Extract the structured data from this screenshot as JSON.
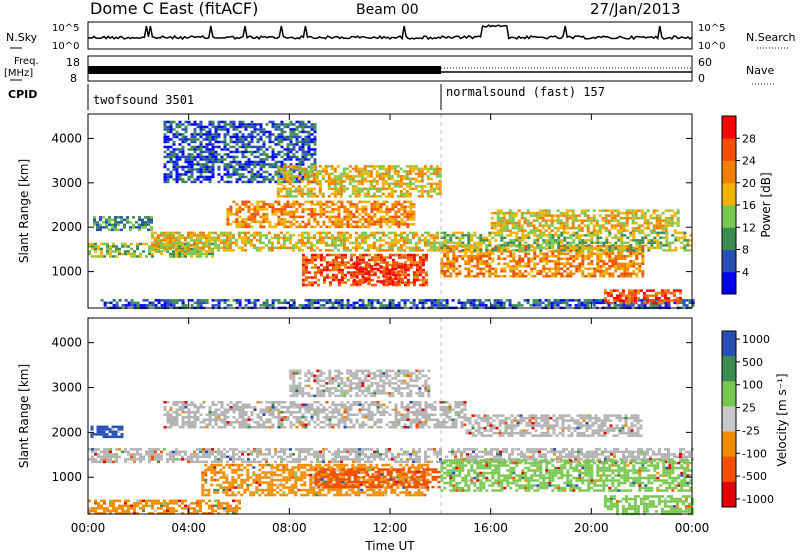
{
  "header": {
    "title": "Dome C East (fitACF)",
    "beam": "Beam 00",
    "date": "27/Jan/2013"
  },
  "status_panels": {
    "nsky_label": "N.Sky",
    "nsky_ticks": [
      "10^5",
      "10^0"
    ],
    "nsearch_label": "N.Search",
    "nsearch_ticks": [
      "10^5",
      "10^0"
    ],
    "freq_label": "Freq.",
    "freq_unit": "[MHz]",
    "freq_ticks": [
      "18",
      "8"
    ],
    "nave_label": "Nave",
    "nave_ticks": [
      "60",
      "0"
    ],
    "cpid_label": "CPID",
    "cpid_segments": [
      {
        "name": "twofsound 3501",
        "start_hour": 0
      },
      {
        "name": "normalsound (fast) 157",
        "start_hour": 14
      }
    ]
  },
  "colors": {
    "power_scale": [
      "#0000ff",
      "#2850b4",
      "#3c8c50",
      "#78c850",
      "#f0b400",
      "#f08000",
      "#f05000",
      "#ff0000"
    ],
    "velocity_scale": [
      "#e00000",
      "#f05000",
      "#f08c00",
      "#c8c8c8",
      "#78c850",
      "#3c8c50",
      "#2850b4"
    ],
    "ground_scatter": "#b4b4b4"
  },
  "chart_data": [
    {
      "type": "heatmap",
      "title": "Power",
      "ylabel": "Slant Range [km]",
      "xlabel": "Time UT",
      "x_ticks": [
        "00:00",
        "04:00",
        "08:00",
        "12:00",
        "16:00",
        "20:00",
        "00:00"
      ],
      "xlim_hours": [
        0,
        24
      ],
      "y_ticks": [
        1000,
        2000,
        3000,
        4000
      ],
      "ylim": [
        180,
        4550
      ],
      "colorbar_label": "Power [dB]",
      "colorbar_ticks": [
        4,
        8,
        12,
        16,
        20,
        24,
        28
      ],
      "colorbar_range": [
        0,
        32
      ],
      "bands": [
        {
          "t0": 0,
          "t1": 5,
          "r0": 1350,
          "r1": 1650,
          "level": 3
        },
        {
          "t0": 0.2,
          "t1": 2.5,
          "r0": 1950,
          "r1": 2250,
          "level": 2
        },
        {
          "t0": 0.5,
          "t1": 24,
          "r0": 200,
          "r1": 380,
          "level": 1
        },
        {
          "t0": 2.5,
          "t1": 14,
          "r0": 1500,
          "r1": 1900,
          "level": 4
        },
        {
          "t0": 5.5,
          "t1": 13,
          "r0": 2000,
          "r1": 2600,
          "level": 5
        },
        {
          "t0": 8.5,
          "t1": 13.5,
          "r0": 700,
          "r1": 1400,
          "level": 6
        },
        {
          "t0": 10.5,
          "t1": 12.5,
          "r0": 700,
          "r1": 1200,
          "level": 7
        },
        {
          "t0": 14,
          "t1": 22,
          "r0": 900,
          "r1": 1600,
          "level": 5
        },
        {
          "t0": 14,
          "t1": 24,
          "r0": 1500,
          "r1": 1900,
          "level": 3
        },
        {
          "t0": 16,
          "t1": 23.5,
          "r0": 1900,
          "r1": 2400,
          "level": 4
        },
        {
          "t0": 20.5,
          "t1": 23.5,
          "r0": 300,
          "r1": 600,
          "level": 6
        },
        {
          "t0": 3.0,
          "t1": 9,
          "r0": 3000,
          "r1": 4400,
          "level": 1
        },
        {
          "t0": 7.5,
          "t1": 14,
          "r0": 2700,
          "r1": 3400,
          "level": 4
        }
      ]
    },
    {
      "type": "heatmap",
      "title": "Velocity",
      "ylabel": "Slant Range [km]",
      "xlabel": "Time UT",
      "x_ticks": [
        "00:00",
        "04:00",
        "08:00",
        "12:00",
        "16:00",
        "20:00",
        "00:00"
      ],
      "xlim_hours": [
        0,
        24
      ],
      "y_ticks": [
        1000,
        2000,
        3000,
        4000
      ],
      "ylim": [
        180,
        4550
      ],
      "colorbar_label": "Velocity [m s⁻¹]",
      "colorbar_ticks": [
        "1000",
        "500",
        "100",
        "25",
        "-25",
        "-100",
        "-500",
        "-1000"
      ],
      "bands": [
        {
          "t0": 0,
          "t1": 24,
          "r0": 1350,
          "r1": 1650,
          "color": "ground"
        },
        {
          "t0": 3,
          "t1": 15,
          "r0": 2100,
          "r1": 2700,
          "color": "ground"
        },
        {
          "t0": 4.5,
          "t1": 13.5,
          "r0": 600,
          "r1": 1300,
          "color": "orange"
        },
        {
          "t0": 9,
          "t1": 14,
          "r0": 800,
          "r1": 1200,
          "color": "red-orange"
        },
        {
          "t0": 14,
          "t1": 24,
          "r0": 700,
          "r1": 1400,
          "color": "green"
        },
        {
          "t0": 0.1,
          "t1": 1.3,
          "r0": 1900,
          "r1": 2150,
          "color": "blue"
        },
        {
          "t0": 8,
          "t1": 13.5,
          "r0": 2800,
          "r1": 3400,
          "color": "ground"
        },
        {
          "t0": 15,
          "t1": 22,
          "r0": 1900,
          "r1": 2400,
          "color": "ground"
        },
        {
          "t0": 20.5,
          "t1": 24,
          "r0": 200,
          "r1": 600,
          "color": "green"
        },
        {
          "t0": 0,
          "t1": 6,
          "r0": 200,
          "r1": 500,
          "color": "orange"
        }
      ]
    }
  ]
}
